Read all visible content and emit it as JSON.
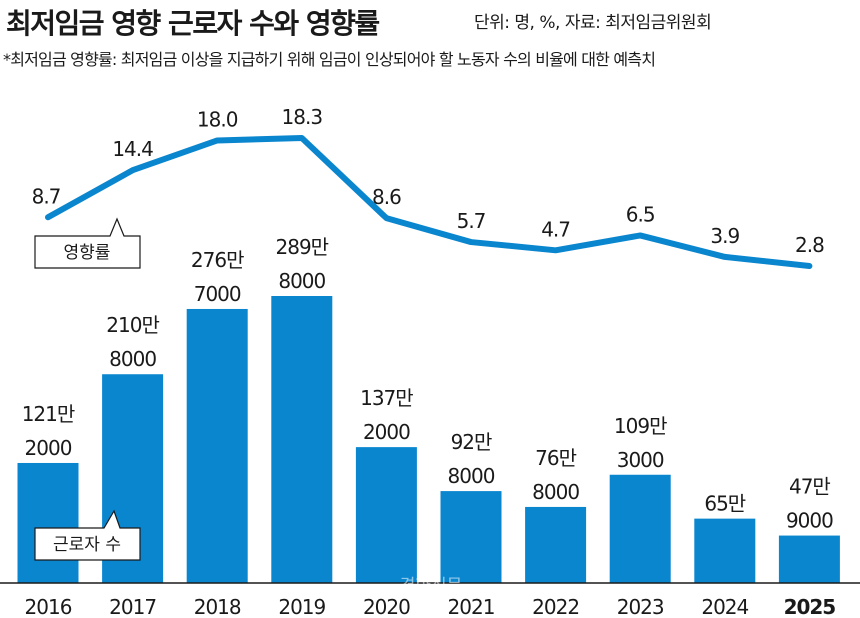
{
  "header": {
    "title": "최저임금 영향 근로자 수와 영향률",
    "unit_note": "단위: 명, %, 자료: 최저임금위원회",
    "footnote": "*최저임금 영향률: 최저임금 이상을 지급하기 위해 임금이 인상되어야 할 노동자 수의 비율에 대한 예측치"
  },
  "legend": {
    "rate_label": "영향률",
    "workers_label": "근로자 수"
  },
  "watermark": "경향신문",
  "colors": {
    "bar": "#0a86cf",
    "line": "#0a86cf",
    "highlight": "#0a86cf",
    "text": "#1a1a1a"
  },
  "chart_data": {
    "type": "bar",
    "categories": [
      "2016",
      "2017",
      "2018",
      "2019",
      "2020",
      "2021",
      "2022",
      "2023",
      "2024",
      "2025"
    ],
    "series": [
      {
        "name": "근로자 수",
        "type": "bar",
        "values": [
          1212000,
          2108000,
          2767000,
          2898000,
          1372000,
          928000,
          768000,
          1093000,
          650000,
          479000
        ],
        "labels": [
          [
            "121만",
            "2000"
          ],
          [
            "210만",
            "8000"
          ],
          [
            "276만",
            "7000"
          ],
          [
            "289만",
            "8000"
          ],
          [
            "137만",
            "2000"
          ],
          [
            "92만",
            "8000"
          ],
          [
            "76만",
            "8000"
          ],
          [
            "109만",
            "3000"
          ],
          [
            "65만",
            ""
          ],
          [
            "47만",
            "9000"
          ]
        ]
      },
      {
        "name": "영향률",
        "type": "line",
        "values": [
          8.7,
          14.4,
          18.0,
          18.3,
          8.6,
          5.7,
          4.7,
          6.5,
          3.9,
          2.8
        ],
        "labels": [
          "8.7",
          "14.4",
          "18.0",
          "18.3",
          "8.6",
          "5.7",
          "4.7",
          "6.5",
          "3.9",
          "2.8"
        ]
      }
    ],
    "highlight_category": "2025",
    "title": "최저임금 영향 근로자 수와 영향률",
    "xlabel": "",
    "ylabel": ""
  }
}
